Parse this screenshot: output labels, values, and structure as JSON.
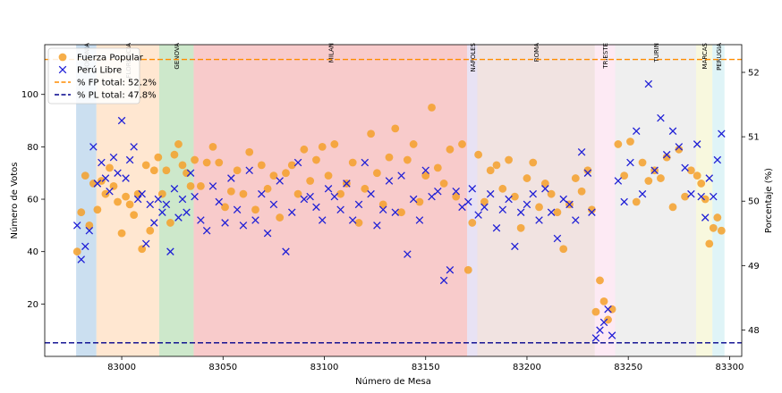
{
  "chart_data": {
    "type": "scatter",
    "xlabel": "Número de Mesa",
    "ylabel": "Número de Votos",
    "ylabel_right": "Porcentaje (%)",
    "xlim": [
      82962,
      83306
    ],
    "ylim": [
      0,
      119
    ],
    "ylim_right": [
      47.59,
      52.43
    ],
    "x_ticks": [
      83000,
      83050,
      83100,
      83150,
      83200,
      83250,
      83300
    ],
    "y_ticks": [
      20,
      40,
      60,
      80,
      100
    ],
    "y_ticks_right": [
      48,
      49,
      50,
      51,
      52
    ],
    "grid": false,
    "legend_position": "top-left",
    "legend": [
      {
        "label": "Fuerza Popular",
        "kind": "marker-circle",
        "color": "#f5a02a"
      },
      {
        "label": "Perú Libre",
        "kind": "marker-x",
        "color": "#1f1fd6"
      },
      {
        "label": "% FP total: 52.2%",
        "kind": "dashed-line",
        "color": "#ff8c00"
      },
      {
        "label": "% PL total: 47.8%",
        "kind": "dashed-line",
        "color": "#00008b"
      }
    ],
    "reference_lines": [
      {
        "name": "% FP total",
        "axis": "right",
        "value": 52.2,
        "color": "#ff8c00"
      },
      {
        "name": "% PL total",
        "axis": "right",
        "value": 47.8,
        "color": "#00008b"
      }
    ],
    "regions": [
      {
        "label": "BOLONIA",
        "start": 82977.5,
        "end": 82987.5,
        "color": "#a9c9e6"
      },
      {
        "label": "FLORENCIA",
        "start": 82987.5,
        "end": 83018.5,
        "color": "#ffd7b3"
      },
      {
        "label": "GENOVA",
        "start": 83018.5,
        "end": 83035.5,
        "color": "#acd9a8"
      },
      {
        "label": "MILAN",
        "start": 83035.5,
        "end": 83170.5,
        "color": "#f4a9a9"
      },
      {
        "label": "NAPOLES",
        "start": 83170.5,
        "end": 83175.5,
        "color": "#d9cfec"
      },
      {
        "label": "ROMA",
        "start": 83175.5,
        "end": 83233.5,
        "color": "#e8d1cd"
      },
      {
        "label": "TRIESTE",
        "start": 83233.5,
        "end": 83243.5,
        "color": "#fbdcec"
      },
      {
        "label": "TURIN",
        "start": 83243.5,
        "end": 83283.5,
        "color": "#e4e4e4"
      },
      {
        "label": "MARCAS",
        "start": 83283.5,
        "end": 83291.5,
        "color": "#f3f3c8"
      },
      {
        "label": "PERUGIA",
        "start": 83291.5,
        "end": 83297.5,
        "color": "#c9ecf2"
      }
    ],
    "series": [
      {
        "name": "Fuerza Popular",
        "marker": "circle",
        "color": "#f5a02a",
        "x": [
          82978,
          82980,
          82982,
          82984,
          82986,
          82988,
          82990,
          82992,
          82994,
          82996,
          82998,
          83000,
          83002,
          83004,
          83006,
          83008,
          83010,
          83012,
          83014,
          83016,
          83018,
          83020,
          83022,
          83024,
          83026,
          83028,
          83030,
          83032,
          83034,
          83036,
          83039,
          83042,
          83045,
          83048,
          83051,
          83054,
          83057,
          83060,
          83063,
          83066,
          83069,
          83072,
          83075,
          83078,
          83081,
          83084,
          83087,
          83090,
          83093,
          83096,
          83099,
          83102,
          83105,
          83108,
          83111,
          83114,
          83117,
          83120,
          83123,
          83126,
          83129,
          83132,
          83135,
          83138,
          83141,
          83144,
          83147,
          83150,
          83153,
          83156,
          83159,
          83162,
          83165,
          83168,
          83171,
          83173,
          83176,
          83179,
          83182,
          83185,
          83188,
          83191,
          83194,
          83197,
          83200,
          83203,
          83206,
          83209,
          83212,
          83215,
          83218,
          83221,
          83224,
          83227,
          83230,
          83232,
          83234,
          83236,
          83238,
          83240,
          83242,
          83245,
          83248,
          83251,
          83254,
          83257,
          83260,
          83263,
          83266,
          83269,
          83272,
          83275,
          83278,
          83281,
          83284,
          83286,
          83288,
          83290,
          83292,
          83294,
          83296
        ],
        "y": [
          40,
          55,
          69,
          50,
          66,
          56,
          67,
          62,
          72,
          65,
          59,
          47,
          61,
          58,
          54,
          62,
          41,
          73,
          48,
          71,
          76,
          62,
          71,
          51,
          77,
          81,
          73,
          70,
          65,
          75,
          65,
          74,
          80,
          74,
          57,
          63,
          71,
          62,
          78,
          56,
          73,
          64,
          69,
          53,
          70,
          73,
          62,
          79,
          67,
          75,
          80,
          69,
          81,
          62,
          66,
          74,
          51,
          64,
          85,
          70,
          58,
          76,
          87,
          55,
          75,
          81,
          59,
          69,
          95,
          72,
          66,
          79,
          61,
          81,
          33,
          51,
          77,
          59,
          71,
          73,
          64,
          75,
          61,
          49,
          68,
          74,
          57,
          66,
          62,
          55,
          41,
          58,
          68,
          63,
          71,
          56,
          17,
          29,
          21,
          14,
          18,
          81,
          69,
          82,
          59,
          74,
          67,
          71,
          68,
          76,
          57,
          79,
          61,
          71,
          69,
          66,
          60,
          43,
          49,
          53,
          48
        ],
        "values": [
          40,
          55,
          69,
          50,
          66,
          56,
          67,
          62,
          72,
          65,
          59,
          47,
          61,
          58,
          54,
          62,
          41,
          73,
          48,
          71,
          76,
          62,
          71,
          51,
          77,
          81,
          73,
          70,
          65,
          75,
          65,
          74,
          80,
          74,
          57,
          63,
          71,
          62,
          78,
          56,
          73,
          64,
          69,
          53,
          70,
          73,
          62,
          79,
          67,
          75,
          80,
          69,
          81,
          62,
          66,
          74,
          51,
          64,
          85,
          70,
          58,
          76,
          87,
          55,
          75,
          81,
          59,
          69,
          95,
          72,
          66,
          79,
          61,
          81,
          33,
          51,
          77,
          59,
          71,
          73,
          64,
          75,
          61,
          49,
          68,
          74,
          57,
          66,
          62,
          55,
          41,
          58,
          68,
          63,
          71,
          56,
          17,
          29,
          21,
          14,
          18,
          81,
          69,
          82,
          59,
          74,
          67,
          71,
          68,
          76,
          57,
          79,
          61,
          71,
          69,
          66,
          60,
          43,
          49,
          53,
          48
        ]
      },
      {
        "name": "Perú Libre",
        "marker": "x",
        "color": "#1f1fd6",
        "x": [
          82978,
          82980,
          82982,
          82984,
          82986,
          82988,
          82990,
          82992,
          82994,
          82996,
          82998,
          83000,
          83002,
          83004,
          83006,
          83008,
          83010,
          83012,
          83014,
          83016,
          83018,
          83020,
          83022,
          83024,
          83026,
          83028,
          83030,
          83032,
          83034,
          83036,
          83039,
          83042,
          83045,
          83048,
          83051,
          83054,
          83057,
          83060,
          83063,
          83066,
          83069,
          83072,
          83075,
          83078,
          83081,
          83084,
          83087,
          83090,
          83093,
          83096,
          83099,
          83102,
          83105,
          83108,
          83111,
          83114,
          83117,
          83120,
          83123,
          83126,
          83129,
          83132,
          83135,
          83138,
          83141,
          83144,
          83147,
          83150,
          83153,
          83156,
          83159,
          83162,
          83165,
          83168,
          83171,
          83173,
          83176,
          83179,
          83182,
          83185,
          83188,
          83191,
          83194,
          83197,
          83200,
          83203,
          83206,
          83209,
          83212,
          83215,
          83218,
          83221,
          83224,
          83227,
          83230,
          83232,
          83234,
          83236,
          83238,
          83240,
          83242,
          83245,
          83248,
          83251,
          83254,
          83257,
          83260,
          83263,
          83266,
          83269,
          83272,
          83275,
          83278,
          83281,
          83284,
          83286,
          83288,
          83290,
          83292,
          83294,
          83296
        ],
        "y": [
          50,
          37,
          42,
          48,
          80,
          66,
          74,
          68,
          63,
          76,
          70,
          90,
          68,
          75,
          80,
          60,
          62,
          43,
          58,
          51,
          60,
          55,
          58,
          40,
          64,
          53,
          60,
          55,
          70,
          61,
          52,
          48,
          65,
          59,
          51,
          68,
          56,
          50,
          71,
          52,
          62,
          47,
          58,
          67,
          40,
          55,
          74,
          60,
          61,
          57,
          52,
          64,
          61,
          56,
          66,
          52,
          58,
          74,
          62,
          50,
          56,
          67,
          55,
          69,
          39,
          60,
          52,
          71,
          61,
          63,
          29,
          33,
          63,
          57,
          59,
          64,
          54,
          57,
          62,
          49,
          56,
          60,
          42,
          55,
          58,
          62,
          52,
          64,
          55,
          45,
          60,
          58,
          52,
          78,
          70,
          55,
          7,
          10,
          13,
          18,
          8,
          67,
          59,
          74,
          86,
          62,
          104,
          71,
          91,
          77,
          86,
          80,
          72,
          62,
          81,
          61,
          53,
          68,
          61,
          75,
          85
        ],
        "values": [
          50,
          37,
          42,
          48,
          80,
          66,
          74,
          68,
          63,
          76,
          70,
          90,
          68,
          75,
          80,
          60,
          62,
          43,
          58,
          51,
          60,
          55,
          58,
          40,
          64,
          53,
          60,
          55,
          70,
          61,
          52,
          48,
          65,
          59,
          51,
          68,
          56,
          50,
          71,
          52,
          62,
          47,
          58,
          67,
          40,
          55,
          74,
          60,
          61,
          57,
          52,
          64,
          61,
          56,
          66,
          52,
          58,
          74,
          62,
          50,
          56,
          67,
          55,
          69,
          39,
          60,
          52,
          71,
          61,
          63,
          29,
          33,
          63,
          57,
          59,
          64,
          54,
          57,
          62,
          49,
          56,
          60,
          42,
          55,
          58,
          62,
          52,
          64,
          55,
          45,
          60,
          58,
          52,
          78,
          70,
          55,
          7,
          10,
          13,
          18,
          8,
          67,
          59,
          74,
          86,
          62,
          104,
          71,
          91,
          77,
          86,
          80,
          72,
          62,
          81,
          61,
          53,
          68,
          61,
          75,
          85
        ]
      }
    ]
  }
}
